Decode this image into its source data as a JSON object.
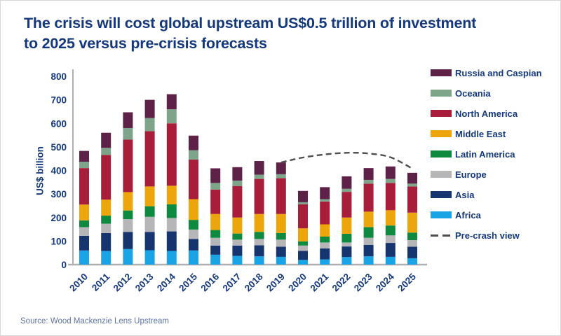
{
  "page": {
    "title_line1": "The crisis will cost global upstream US$0.5 trillion of investment",
    "title_line2": "to 2025 versus pre-crisis forecasts",
    "source": "Source: Wood Mackenzie Lens Upstream"
  },
  "colors": {
    "title_text": "#14387c",
    "axis_text": "#14387c",
    "axis_line": "#b0b0b3",
    "source_text": "#5d72a5",
    "canvas_border": "#d6d6d6"
  },
  "chart_data": {
    "type": "bar",
    "stacked": true,
    "ylabel": "US$ billion",
    "xlabel": "",
    "ylim": [
      0,
      800
    ],
    "ytick_step": 100,
    "grid": false,
    "legend_position": "right",
    "categories": [
      "2010",
      "2011",
      "2012",
      "2013",
      "2014",
      "2015",
      "2016",
      "2017",
      "2018",
      "2019",
      "2020",
      "2021",
      "2022",
      "2023",
      "2024",
      "2025"
    ],
    "series": [
      {
        "name": "Africa",
        "color": "#1ba4e5",
        "values": [
          60,
          58,
          66,
          61,
          58,
          60,
          42,
          37,
          35,
          33,
          20,
          22,
          32,
          35,
          33,
          27
        ]
      },
      {
        "name": "Asia",
        "color": "#16356e",
        "values": [
          62,
          76,
          73,
          78,
          83,
          49,
          39,
          44,
          47,
          43,
          38,
          47,
          45,
          49,
          59,
          49
        ]
      },
      {
        "name": "Europe",
        "color": "#b6b6b9",
        "values": [
          37,
          40,
          54,
          64,
          57,
          40,
          33,
          25,
          27,
          30,
          23,
          25,
          17,
          30,
          32,
          28
        ]
      },
      {
        "name": "Latin America",
        "color": "#0d8a40",
        "values": [
          29,
          34,
          37,
          45,
          58,
          41,
          33,
          26,
          30,
          28,
          18,
          25,
          37,
          45,
          42,
          32
        ]
      },
      {
        "name": "Middle East",
        "color": "#eca50a",
        "values": [
          67,
          68,
          78,
          84,
          79,
          88,
          68,
          68,
          76,
          81,
          55,
          52,
          69,
          66,
          65,
          85
        ]
      },
      {
        "name": "North America",
        "color": "#a81e3a",
        "values": [
          155,
          190,
          223,
          235,
          265,
          168,
          104,
          134,
          149,
          152,
          102,
          97,
          109,
          119,
          116,
          111
        ]
      },
      {
        "name": "Oceania",
        "color": "#7ea58a",
        "values": [
          27,
          30,
          49,
          56,
          60,
          40,
          28,
          23,
          18,
          17,
          9,
          10,
          13,
          16,
          17,
          12
        ]
      },
      {
        "name": "Russia and Caspian",
        "color": "#5e2148",
        "values": [
          46,
          64,
          67,
          77,
          64,
          62,
          62,
          57,
          58,
          50,
          48,
          51,
          53,
          50,
          53,
          46
        ]
      }
    ],
    "totals": [
      483,
      560,
      647,
      700,
      724,
      548,
      409,
      414,
      440,
      434,
      313,
      329,
      375,
      410,
      417,
      390
    ],
    "line_series": {
      "name": "Pre-crash view",
      "color": "#4d4d4d",
      "style": "dashed",
      "x": [
        "2019",
        "2020",
        "2021",
        "2022",
        "2023",
        "2024",
        "2025"
      ],
      "values": [
        434,
        455,
        468,
        475,
        472,
        456,
        408
      ]
    }
  }
}
